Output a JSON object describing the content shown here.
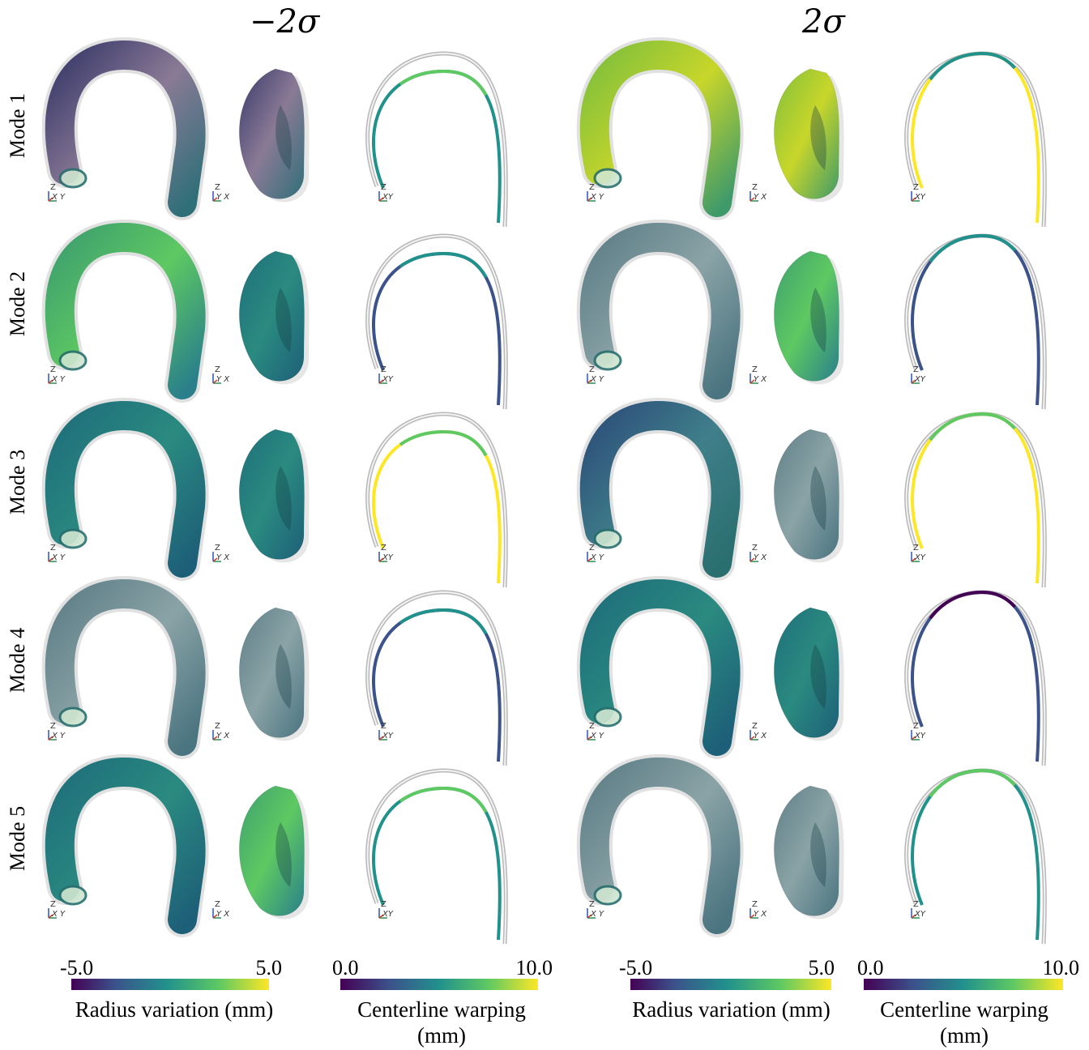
{
  "headers": {
    "left": "−2σ",
    "right": "2σ"
  },
  "rows": [
    "Mode 1",
    "Mode 2",
    "Mode 3",
    "Mode 4",
    "Mode 5"
  ],
  "axes_labels": {
    "front": "X Y",
    "side": "Y X",
    "centerline": "XY",
    "up": "Z"
  },
  "colorbars": [
    {
      "title": "Radius variation (mm)",
      "min": "-5.0",
      "max": "5.0",
      "colormap": "viridis"
    },
    {
      "title": "Centerline  warping (mm)",
      "min": "0.0",
      "max": "10.0",
      "colormap": "viridis"
    },
    {
      "title": "Radius variation (mm)",
      "min": "-5.0",
      "max": "5.0",
      "colormap": "viridis"
    },
    {
      "title": "Centerline  warping (mm)",
      "min": "0.0",
      "max": "10.0",
      "colormap": "viridis"
    }
  ],
  "colors": {
    "ghost": "#c8c8c8",
    "viridis_dark": "#440154",
    "viridis_blue": "#3b528b",
    "viridis_teal": "#21918c",
    "viridis_green": "#5ec962",
    "viridis_yellow": "#fde725",
    "mauve": "#8a7a96"
  }
}
